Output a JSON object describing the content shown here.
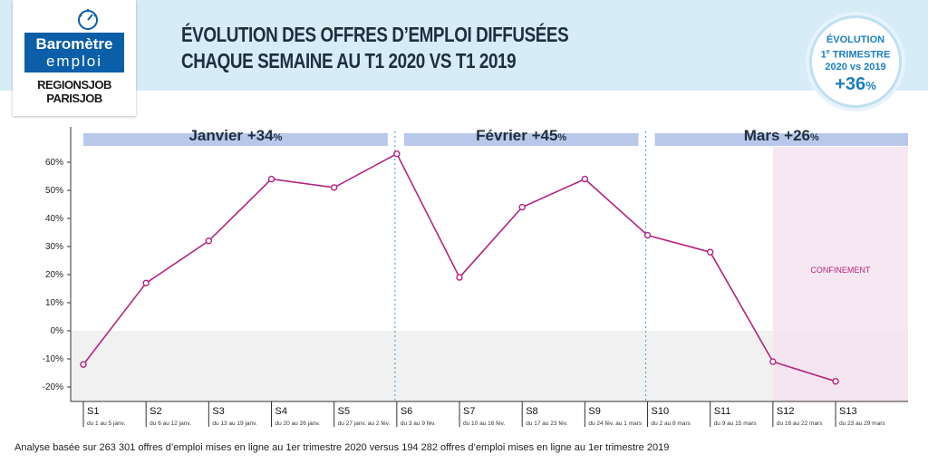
{
  "logo": {
    "line1": "Baromètre",
    "line2": "emploi",
    "brand1": "REGIONSJOB",
    "brand2": "PARISJOB",
    "color": "#0b5ea8"
  },
  "title_line1": "ÉVOLUTION DES OFFRES D’EMPLOI DIFFUSÉES",
  "title_line2": "CHAQUE SEMAINE AU T1 2020 VS T1 2019",
  "badge": {
    "line1": "ÉVOLUTION",
    "line2": "1",
    "line2_sup": "e",
    "line2_rest": " TRIMESTRE",
    "line3": "2020 vs 2019",
    "value": "+36",
    "unit": "%"
  },
  "footer": "Analyse basée sur 263 301 offres d’emploi mises en ligne au 1er trimestre 2020 versus 194 282 offres d’emploi mises en ligne au 1er trimestre 2019",
  "chart_data": {
    "type": "line",
    "ylim": [
      -25,
      68
    ],
    "yticks": [
      60,
      50,
      40,
      30,
      20,
      10,
      0,
      -10,
      -20
    ],
    "ytick_labels": [
      "60%",
      "50%",
      "40%",
      "30%",
      "20%",
      "10%",
      "0%",
      "-10%",
      "-20%"
    ],
    "grid": false,
    "line_color": "#b5237f",
    "weeks": [
      {
        "label": "S1",
        "sub": "du 1 au 5 janv."
      },
      {
        "label": "S2",
        "sub": "du 6 au 12 janv."
      },
      {
        "label": "S3",
        "sub": "du 13 au 19 janv."
      },
      {
        "label": "S4",
        "sub": "du 20 au 26 janv."
      },
      {
        "label": "S5",
        "sub": "du 27 janv. au 2 fév."
      },
      {
        "label": "S6",
        "sub": "du 3 au 9 fév."
      },
      {
        "label": "S7",
        "sub": "du 10 au 16 fév."
      },
      {
        "label": "S8",
        "sub": "du 17 au 23 fév."
      },
      {
        "label": "S9",
        "sub": "du 24 fév. au 1 mars"
      },
      {
        "label": "S10",
        "sub": "du 2 au 8 mars"
      },
      {
        "label": "S11",
        "sub": "du 9 au 15 mars"
      },
      {
        "label": "S12",
        "sub": "du 16 au 22 mars"
      },
      {
        "label": "S13",
        "sub": "du 23 au 29 mars"
      }
    ],
    "values": [
      -12,
      17,
      32,
      54,
      51,
      63,
      19,
      44,
      54,
      34,
      28,
      -11,
      -18
    ],
    "months": [
      {
        "label": "Janvier +34",
        "unit": "%",
        "from_week": 0,
        "to_week": 4
      },
      {
        "label": "Février +45",
        "unit": "%",
        "from_week": 5,
        "to_week": 8
      },
      {
        "label": "Mars +26",
        "unit": "%",
        "from_week": 9,
        "to_week": 12
      }
    ],
    "month_band_color": "#b9c8ea",
    "negative_zone_color": "#f1f1f1",
    "confinement": {
      "label": "CONFINEMENT",
      "from_week": 11,
      "color": "#f6e3f0",
      "text_color": "#b5237f"
    }
  }
}
